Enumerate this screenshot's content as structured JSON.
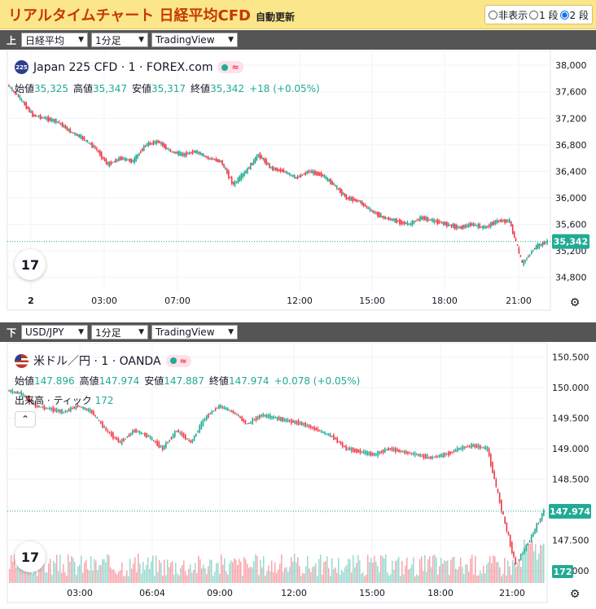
{
  "header": {
    "title": "リアルタイムチャート 日経平均CFD",
    "subtitle": "自動更新",
    "modes": [
      {
        "label": "非表示",
        "selected": false
      },
      {
        "label": "1 段",
        "selected": false
      },
      {
        "label": "2 段",
        "selected": true
      }
    ]
  },
  "panel_top": {
    "toolbar": {
      "icon": "上",
      "symbol": "日経平均",
      "interval": "1分足",
      "source": "TradingView"
    },
    "legend": {
      "badge": "225",
      "name": "Japan 225 CFD · 1 · FOREX.com"
    },
    "ohlc": {
      "open_label": "始値",
      "open": "35,325",
      "high_label": "高値",
      "high": "35,347",
      "low_label": "安値",
      "low": "35,317",
      "close_label": "終値",
      "close": "35,342",
      "change": "+18 (+0.05%)"
    },
    "price_tag": "35,342",
    "logo": "17",
    "colors": {
      "up": "#22ab94",
      "down": "#f23645"
    }
  },
  "panel_bottom": {
    "toolbar": {
      "icon": "下",
      "symbol": "USD/JPY",
      "interval": "1分足",
      "source": "TradingView"
    },
    "legend": {
      "name": "米ドル／円 · 1 · OANDA"
    },
    "ohlc": {
      "open_label": "始値",
      "open": "147.896",
      "high_label": "高値",
      "high": "147.974",
      "low_label": "安値",
      "low": "147.887",
      "close_label": "終値",
      "close": "147.974",
      "change": "+0.078 (+0.05%)"
    },
    "volume": {
      "label": "出来高 · ティック",
      "value": "172"
    },
    "price_tag": "147.974",
    "volume_tag": "172",
    "logo": "17"
  },
  "chart_data": [
    {
      "type": "line",
      "title": "Japan 225 CFD · 1 · FOREX.com",
      "x_ticks": [
        "2",
        "03:00",
        "07:00",
        "12:00",
        "15:00",
        "18:00",
        "21:00"
      ],
      "y_ticks": [
        "38,000",
        "37,600",
        "37,200",
        "36,800",
        "36,400",
        "36,000",
        "35,600",
        "35,200",
        "34,800"
      ],
      "ylim": [
        34600,
        38100
      ],
      "series": [
        {
          "values": [
            37700,
            37500,
            37250,
            37200,
            37150,
            37000,
            36900,
            36750,
            36500,
            36600,
            36550,
            36800,
            36850,
            36700,
            36650,
            36700,
            36600,
            36550,
            36200,
            36400,
            36650,
            36450,
            36400,
            36300,
            36400,
            36350,
            36200,
            36000,
            35950,
            35800,
            35700,
            35650,
            35600,
            35700,
            35650,
            35600,
            35550,
            35600,
            35550,
            35650,
            35650,
            35000,
            35250,
            35342
          ]
        }
      ]
    },
    {
      "type": "line",
      "title": "米ドル／円 · 1 · OANDA",
      "x_ticks": [
        "03:00",
        "06:04",
        "09:00",
        "12:00",
        "15:00",
        "18:00",
        "21:00"
      ],
      "y_ticks": [
        "150.500",
        "150.000",
        "149.500",
        "149.000",
        "148.500",
        "148.000",
        "147.500",
        "147.000"
      ],
      "ylim": [
        146.8,
        150.6
      ],
      "series": [
        {
          "values": [
            149.95,
            149.9,
            149.7,
            149.65,
            149.6,
            149.7,
            149.6,
            149.3,
            149.1,
            149.3,
            149.2,
            149.0,
            149.3,
            149.1,
            149.5,
            149.7,
            149.6,
            149.4,
            149.55,
            149.5,
            149.45,
            149.4,
            149.3,
            149.2,
            149.0,
            148.95,
            148.9,
            149.0,
            148.95,
            148.9,
            148.85,
            148.9,
            149.0,
            149.05,
            149.0,
            148.0,
            147.1,
            147.5,
            147.974
          ]
        }
      ]
    }
  ]
}
